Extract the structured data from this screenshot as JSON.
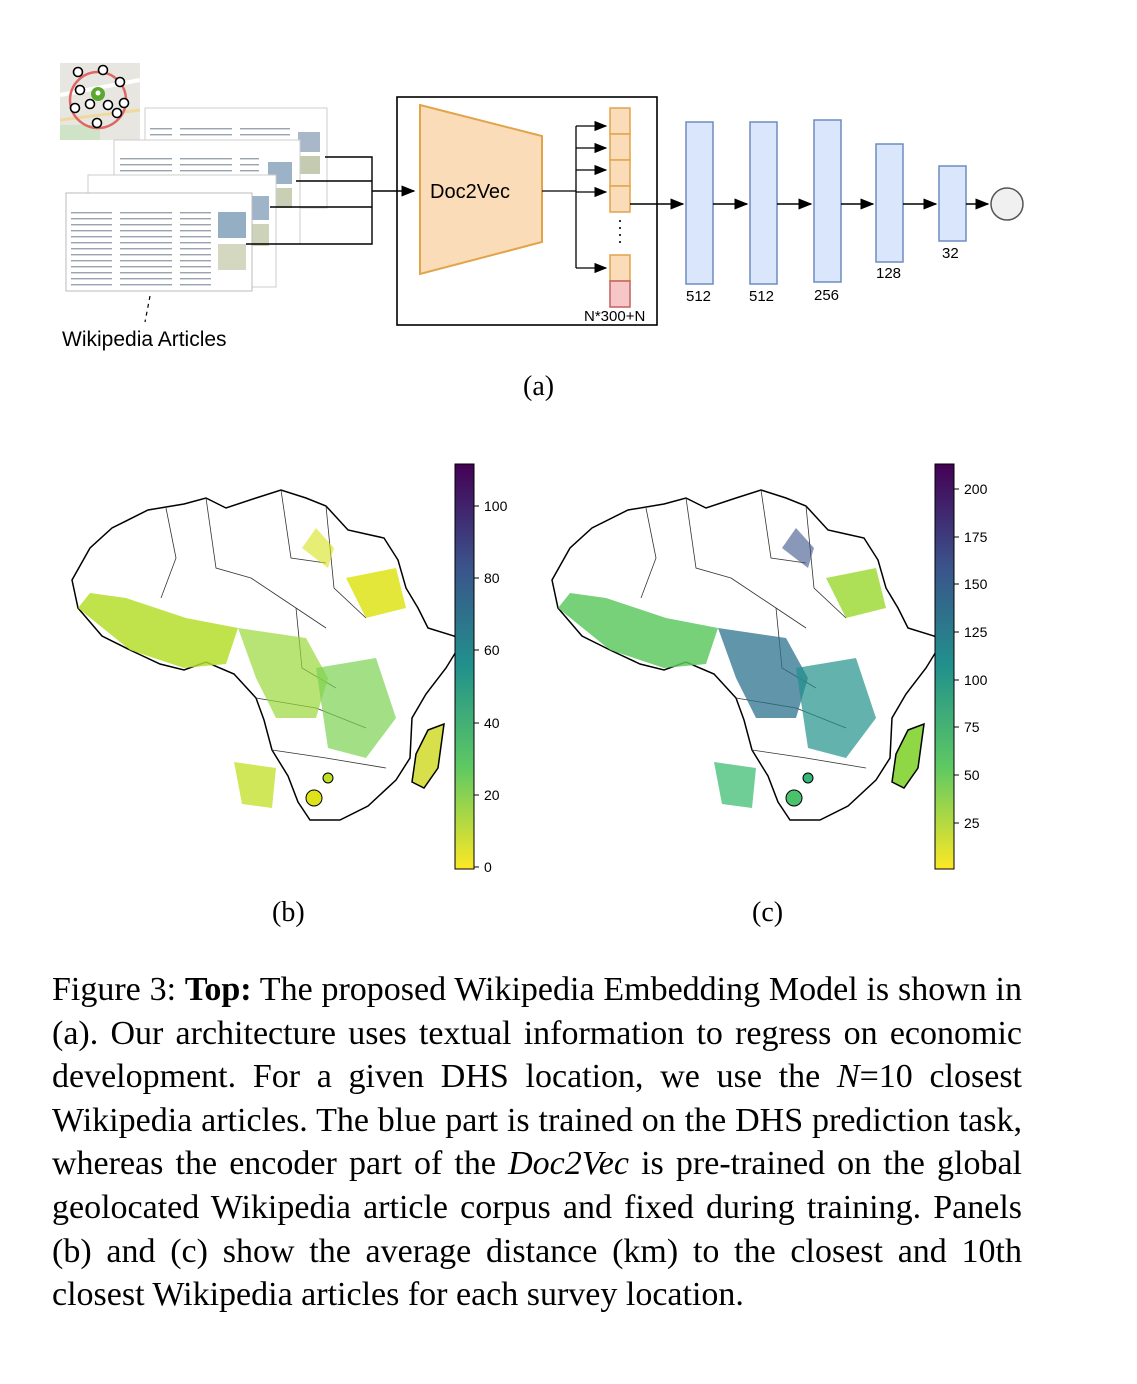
{
  "diagram_a": {
    "source_label": "Wikipedia Articles",
    "encoder_label": "Doc2Vec",
    "embedding_label": "N*300+N",
    "layers": [
      "512",
      "512",
      "256",
      "128",
      "32"
    ],
    "panel_label": "(a)"
  },
  "map_b": {
    "panel_label": "(b)",
    "colorbar_ticks": [
      "0",
      "20",
      "40",
      "60",
      "80",
      "100"
    ]
  },
  "map_c": {
    "panel_label": "(c)",
    "colorbar_ticks": [
      "25",
      "50",
      "75",
      "100",
      "125",
      "150",
      "175",
      "200"
    ]
  },
  "caption": {
    "prefix": "Figure 3: ",
    "bold": "Top:",
    "part1": " The proposed Wikipedia Embedding Model is shown in (a). Our architecture uses textual information to regress on economic development. For a given DHS location, we use the ",
    "n_symbol": "N",
    "part2": "=10 closest Wikipedia articles. The blue part is trained on the DHS prediction task, whereas the encoder part of the ",
    "doc2vec_italic": "Doc2Vec",
    "part3": " is pre-trained on the global geolocated Wikipedia article corpus and fixed during training. Panels (b) and (c) show the average distance (km) to the closest and 10th closest Wikipedia articles for each survey location."
  },
  "colors": {
    "encoder_fill": "#fbdcb8",
    "encoder_stroke": "#e2a44a",
    "dense_fill": "#dae6fb",
    "dense_stroke": "#6c8ebf",
    "extra_fill": "#f6c7c6",
    "extra_stroke": "#c46060"
  }
}
